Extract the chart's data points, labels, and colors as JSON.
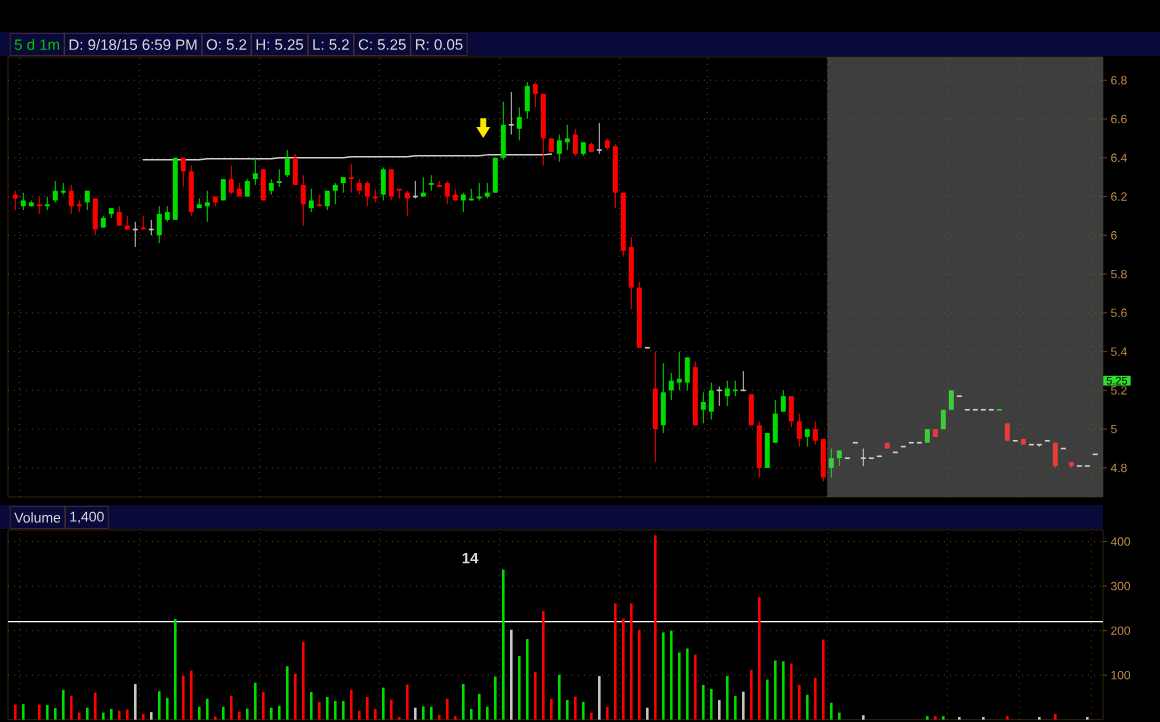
{
  "chart_data": [
    {
      "type": "candlestick",
      "title": "5 d 1m",
      "annotations": [
        "D: 9/18/15 6:59 PM",
        "O: 5.2",
        "H: 5.25",
        "L: 5.2",
        "C: 5.25",
        "R: 0.05",
        {
          "text": "5.25",
          "y": 5.25
        }
      ],
      "categories": [
        null,
        null,
        null,
        null,
        null,
        null,
        null,
        null,
        null,
        null,
        null,
        null,
        null,
        null,
        null,
        null,
        null,
        null,
        null,
        null,
        null,
        null,
        null,
        null,
        null,
        null,
        null,
        null,
        null,
        null,
        null,
        null,
        null,
        null,
        null,
        null,
        null,
        null,
        null,
        null,
        null,
        null,
        null,
        null,
        null,
        null,
        null,
        null,
        null,
        null,
        null,
        null,
        null,
        null,
        null,
        null,
        null,
        null,
        null,
        null,
        null,
        null,
        null,
        null,
        null,
        null,
        null,
        null,
        null,
        null,
        null,
        null,
        null,
        null,
        null,
        null,
        null,
        null,
        null,
        null,
        null,
        null,
        null,
        null,
        null,
        null,
        null,
        null,
        null,
        null,
        null,
        null,
        null,
        null,
        null,
        null,
        null,
        null,
        null,
        null,
        null,
        null,
        null,
        null,
        null,
        null,
        null,
        null,
        null,
        null,
        null,
        null,
        null,
        null,
        null,
        null,
        null,
        null,
        null,
        null,
        null,
        null,
        null,
        null,
        null,
        null,
        null,
        null,
        null,
        null,
        null,
        null,
        null,
        null,
        null,
        null
      ],
      "ohlc": [
        [
          6.21,
          6.23,
          6.13,
          6.19
        ],
        [
          6.15,
          6.22,
          6.13,
          6.18
        ],
        [
          6.15,
          6.18,
          6.15,
          6.17
        ],
        [
          6.16,
          6.2,
          6.11,
          6.15
        ],
        [
          6.15,
          6.2,
          6.13,
          6.16
        ],
        [
          6.18,
          6.28,
          6.17,
          6.23
        ],
        [
          6.22,
          6.27,
          6.21,
          6.23
        ],
        [
          6.23,
          6.26,
          6.11,
          6.15
        ],
        [
          6.16,
          6.18,
          6.12,
          6.15
        ],
        [
          6.17,
          6.23,
          6.13,
          6.23
        ],
        [
          6.19,
          6.19,
          6.0,
          6.03
        ],
        [
          6.04,
          6.1,
          6.04,
          6.09
        ],
        [
          6.11,
          6.14,
          6.09,
          6.14
        ],
        [
          6.12,
          6.15,
          6.05,
          6.05
        ],
        [
          6.05,
          6.1,
          6.03,
          6.03
        ],
        [
          6.03,
          6.07,
          5.94,
          6.03
        ],
        [
          6.04,
          6.1,
          6.03,
          6.03
        ],
        [
          6.03,
          6.08,
          6.0,
          6.03
        ],
        [
          6.0,
          6.15,
          5.96,
          6.11
        ],
        [
          6.08,
          6.15,
          6.07,
          6.12
        ],
        [
          6.08,
          6.4,
          6.08,
          6.4
        ],
        [
          6.4,
          6.4,
          6.25,
          6.33
        ],
        [
          6.33,
          6.36,
          6.1,
          6.12
        ],
        [
          6.14,
          6.19,
          6.14,
          6.16
        ],
        [
          6.15,
          6.23,
          6.07,
          6.17
        ],
        [
          6.2,
          6.2,
          6.15,
          6.17
        ],
        [
          6.18,
          6.29,
          6.18,
          6.29
        ],
        [
          6.29,
          6.36,
          6.21,
          6.22
        ],
        [
          6.24,
          6.27,
          6.2,
          6.2
        ],
        [
          6.2,
          6.29,
          6.2,
          6.28
        ],
        [
          6.29,
          6.4,
          6.26,
          6.32
        ],
        [
          6.34,
          6.34,
          6.18,
          6.18
        ],
        [
          6.23,
          6.29,
          6.21,
          6.27
        ],
        [
          6.27,
          6.34,
          6.25,
          6.28
        ],
        [
          6.31,
          6.44,
          6.3,
          6.4
        ],
        [
          6.4,
          6.42,
          6.26,
          6.26
        ],
        [
          6.26,
          6.31,
          6.05,
          6.16
        ],
        [
          6.14,
          6.24,
          6.12,
          6.18
        ],
        [
          6.16,
          6.21,
          6.15,
          6.15
        ],
        [
          6.15,
          6.23,
          6.13,
          6.23
        ],
        [
          6.23,
          6.27,
          6.16,
          6.26
        ],
        [
          6.27,
          6.3,
          6.22,
          6.3
        ],
        [
          6.3,
          6.37,
          6.22,
          6.29
        ],
        [
          6.27,
          6.29,
          6.21,
          6.23
        ],
        [
          6.27,
          6.28,
          6.15,
          6.2
        ],
        [
          6.2,
          6.24,
          6.17,
          6.19
        ],
        [
          6.21,
          6.35,
          6.18,
          6.34
        ],
        [
          6.34,
          6.34,
          6.18,
          6.2
        ],
        [
          6.24,
          6.24,
          6.19,
          6.23
        ],
        [
          6.22,
          6.23,
          6.1,
          6.19
        ],
        [
          6.2,
          6.28,
          6.19,
          6.2
        ],
        [
          6.2,
          6.3,
          6.2,
          6.22
        ],
        [
          6.26,
          6.31,
          6.23,
          6.27
        ],
        [
          6.26,
          6.28,
          6.25,
          6.25
        ],
        [
          6.27,
          6.28,
          6.16,
          6.2
        ],
        [
          6.21,
          6.24,
          6.18,
          6.18
        ],
        [
          6.18,
          6.22,
          6.12,
          6.21
        ],
        [
          6.18,
          6.24,
          6.18,
          6.19
        ],
        [
          6.19,
          6.27,
          6.18,
          6.2
        ],
        [
          6.2,
          6.27,
          6.19,
          6.22
        ],
        [
          6.22,
          6.4,
          6.22,
          6.4
        ],
        [
          6.4,
          6.69,
          6.39,
          6.57
        ],
        [
          6.57,
          6.74,
          6.52,
          6.57
        ],
        [
          6.55,
          6.66,
          6.49,
          6.61
        ],
        [
          6.64,
          6.79,
          6.6,
          6.77
        ],
        [
          6.78,
          6.79,
          6.66,
          6.73
        ],
        [
          6.73,
          6.73,
          6.36,
          6.5
        ],
        [
          6.5,
          6.5,
          6.43,
          6.43
        ],
        [
          6.42,
          6.52,
          6.38,
          6.49
        ],
        [
          6.48,
          6.57,
          6.44,
          6.5
        ],
        [
          6.52,
          6.55,
          6.41,
          6.42
        ],
        [
          6.42,
          6.48,
          6.41,
          6.48
        ],
        [
          6.47,
          6.48,
          6.43,
          6.43
        ],
        [
          6.44,
          6.58,
          6.42,
          6.44
        ],
        [
          6.49,
          6.5,
          6.44,
          6.45
        ],
        [
          6.46,
          6.47,
          6.14,
          6.22
        ],
        [
          6.22,
          6.22,
          5.89,
          5.92
        ],
        [
          5.94,
          5.99,
          5.62,
          5.73
        ],
        [
          5.73,
          5.76,
          5.42,
          5.42
        ],
        [
          5.42,
          5.42,
          5.42,
          5.42
        ],
        [
          5.21,
          5.4,
          4.83,
          5.0
        ],
        [
          5.02,
          5.34,
          4.98,
          5.19
        ],
        [
          5.2,
          5.29,
          5.15,
          5.25
        ],
        [
          5.24,
          5.4,
          5.2,
          5.26
        ],
        [
          5.24,
          5.37,
          5.2,
          5.37
        ],
        [
          5.32,
          5.35,
          5.02,
          5.02
        ],
        [
          5.1,
          5.19,
          5.03,
          5.14
        ],
        [
          5.09,
          5.24,
          5.05,
          5.2
        ],
        [
          5.2,
          5.22,
          5.12,
          5.2
        ],
        [
          5.17,
          5.25,
          5.12,
          5.21
        ],
        [
          5.2,
          5.25,
          5.17,
          5.2
        ],
        [
          5.2,
          5.3,
          5.2,
          5.2
        ],
        [
          5.18,
          5.18,
          5.02,
          5.02
        ],
        [
          5.02,
          5.04,
          4.75,
          4.8
        ],
        [
          4.8,
          4.98,
          4.8,
          4.98
        ],
        [
          4.93,
          5.15,
          4.93,
          5.08
        ],
        [
          5.09,
          5.2,
          5.09,
          5.17
        ],
        [
          5.17,
          5.17,
          5.01,
          5.04
        ],
        [
          5.04,
          5.08,
          4.91,
          4.95
        ],
        [
          4.96,
          5.0,
          4.91,
          5.0
        ],
        [
          5.0,
          5.04,
          4.92,
          4.94
        ],
        [
          4.95,
          4.95,
          4.73,
          4.75
        ],
        [
          4.8,
          4.9,
          4.75,
          4.85
        ],
        [
          4.85,
          4.89,
          4.81,
          4.89
        ],
        [
          4.85,
          4.85,
          4.85,
          4.85
        ],
        [
          4.93,
          4.93,
          4.93,
          4.93
        ],
        [
          4.85,
          4.9,
          4.81,
          4.85
        ],
        [
          4.85,
          4.85,
          4.85,
          4.85
        ],
        [
          4.86,
          4.86,
          4.86,
          4.86
        ],
        [
          4.93,
          4.93,
          4.9,
          4.9
        ],
        [
          4.88,
          4.88,
          4.88,
          4.88
        ],
        [
          4.91,
          4.91,
          4.91,
          4.91
        ],
        [
          4.93,
          4.93,
          4.93,
          4.93
        ],
        [
          4.93,
          4.93,
          4.93,
          4.93
        ],
        [
          4.93,
          5.0,
          4.93,
          5.0
        ],
        [
          5.0,
          5.0,
          4.96,
          4.96
        ],
        [
          5.0,
          5.1,
          5.0,
          5.1
        ],
        [
          5.1,
          5.2,
          5.1,
          5.2
        ],
        [
          5.17,
          5.17,
          5.17,
          5.17
        ],
        [
          5.1,
          5.1,
          5.1,
          5.1
        ],
        [
          5.1,
          5.1,
          5.1,
          5.1
        ],
        [
          5.1,
          5.1,
          5.1,
          5.1
        ],
        [
          5.1,
          5.1,
          5.1,
          5.1
        ],
        [
          5.1,
          5.1,
          5.1,
          5.1
        ],
        [
          5.03,
          5.03,
          4.94,
          4.94
        ],
        [
          4.94,
          4.94,
          4.94,
          4.94
        ],
        [
          4.95,
          4.95,
          4.92,
          4.92
        ],
        [
          4.92,
          4.92,
          4.92,
          4.92
        ],
        [
          4.92,
          4.92,
          4.91,
          4.92
        ],
        [
          4.94,
          4.94,
          4.94,
          4.94
        ],
        [
          4.93,
          4.93,
          4.8,
          4.81
        ],
        [
          4.9,
          4.9,
          4.9,
          4.9
        ],
        [
          4.83,
          4.83,
          4.8,
          4.81
        ],
        [
          4.81,
          4.81,
          4.81,
          4.81
        ],
        [
          4.81,
          4.81,
          4.81,
          4.81
        ],
        [
          4.87,
          4.87,
          4.87,
          4.87
        ]
      ],
      "colors": [
        "#ff0000",
        "#00dd00",
        "#00dd00",
        "#ff0000",
        "#00dd00",
        "#00dd00",
        "#00dd00",
        "#ff0000",
        "#ff0000",
        "#00dd00",
        "#ff0000",
        "#00dd00",
        "#00dd00",
        "#ff0000",
        "#ff0000",
        "#c8c8c8",
        "#ff0000",
        "#c8c8c8",
        "#00dd00",
        "#00dd00",
        "#00dd00",
        "#ff0000",
        "#ff0000",
        "#00dd00",
        "#00dd00",
        "#ff0000",
        "#00dd00",
        "#ff0000",
        "#ff0000",
        "#00dd00",
        "#00dd00",
        "#ff0000",
        "#00dd00",
        "#00dd00",
        "#00dd00",
        "#ff0000",
        "#ff0000",
        "#00dd00",
        "#ff0000",
        "#00dd00",
        "#00dd00",
        "#00dd00",
        "#ff0000",
        "#ff0000",
        "#ff0000",
        "#ff0000",
        "#00dd00",
        "#ff0000",
        "#ff0000",
        "#ff0000",
        "#c8c8c8",
        "#00dd00",
        "#00dd00",
        "#ff0000",
        "#ff0000",
        "#ff0000",
        "#00dd00",
        "#00dd00",
        "#00dd00",
        "#00dd00",
        "#00dd00",
        "#00dd00",
        "#c8c8c8",
        "#00dd00",
        "#00dd00",
        "#ff0000",
        "#ff0000",
        "#ff0000",
        "#00dd00",
        "#00dd00",
        "#ff0000",
        "#00dd00",
        "#ff0000",
        "#c8c8c8",
        "#ff0000",
        "#ff0000",
        "#ff0000",
        "#ff0000",
        "#ff0000",
        "#c8c8c8",
        "#ff0000",
        "#00dd00",
        "#00dd00",
        "#00dd00",
        "#00dd00",
        "#ff0000",
        "#00dd00",
        "#00dd00",
        "#c8c8c8",
        "#00dd00",
        "#00dd00",
        "#c8c8c8",
        "#ff0000",
        "#ff0000",
        "#00dd00",
        "#00dd00",
        "#00dd00",
        "#ff0000",
        "#ff0000",
        "#00dd00",
        "#ff0000",
        "#ff0000",
        "#3ccc3c",
        "#3ccc3c",
        "#d2d2d2",
        "#d2d2d2",
        "#d2d2d2",
        "#d2d2d2",
        "#d2d2d2",
        "#e63c3c",
        "#d2d2d2",
        "#d2d2d2",
        "#d2d2d2",
        "#d2d2d2",
        "#3ccc3c",
        "#e63c3c",
        "#3ccc3c",
        "#3ccc3c",
        "#d2d2d2",
        "#d2d2d2",
        "#d2d2d2",
        "#d2d2d2",
        "#d2d2d2",
        "#3ccc3c",
        "#e63c3c",
        "#d2d2d2",
        "#e63c3c",
        "#d2d2d2",
        "#d2d2d2",
        "#d2d2d2",
        "#e63c3c",
        "#d2d2d2",
        "#e63c3c",
        "#d2d2d2",
        "#d2d2d2",
        "#d2d2d2"
      ],
      "series": [
        {
          "type": "line",
          "color": "#cfcfcf",
          "values": [
            null,
            null,
            null,
            null,
            null,
            null,
            null,
            null,
            null,
            null,
            null,
            null,
            null,
            null,
            null,
            null,
            6.39,
            6.39,
            6.39,
            6.39,
            6.39,
            6.39,
            6.39,
            6.39,
            6.395,
            6.395,
            6.395,
            6.395,
            6.395,
            6.395,
            6.395,
            6.395,
            6.395,
            6.4,
            6.4,
            6.4,
            6.4,
            6.4,
            6.4,
            6.4,
            6.4,
            6.4,
            6.405,
            6.405,
            6.405,
            6.405,
            6.405,
            6.405,
            6.405,
            6.405,
            6.41,
            6.41,
            6.41,
            6.41,
            6.41,
            6.41,
            6.41,
            6.41,
            6.41,
            6.415,
            6.415,
            6.415,
            6.415,
            6.415,
            6.415,
            6.415,
            6.415,
            6.42,
            null,
            null,
            null,
            null,
            null,
            null,
            null,
            null,
            null,
            null,
            null,
            null,
            null,
            null,
            null,
            null,
            null,
            null,
            null,
            null,
            null,
            null,
            null,
            null,
            null,
            null,
            null,
            null,
            null,
            null,
            null,
            null,
            null,
            null,
            null,
            null,
            null,
            null,
            null,
            null,
            null,
            null,
            null,
            null,
            null,
            null,
            null,
            null,
            null,
            null,
            null,
            null,
            null,
            null,
            null,
            null,
            null,
            null,
            null,
            null,
            null,
            null,
            null,
            null,
            null,
            null,
            null,
            null
          ]
        }
      ],
      "ylim": [
        4.65,
        6.92
      ],
      "yticks": [
        4.8,
        5,
        5.2,
        5.4,
        5.6,
        5.8,
        6,
        6.2,
        6.4,
        6.6,
        6.8
      ],
      "grid": true,
      "tick_labels": "y"
    },
    {
      "type": "bar",
      "title": "Volume",
      "annotations": [
        "1,400",
        "14"
      ],
      "categories": [
        null,
        null,
        null,
        null,
        null,
        null,
        null,
        null,
        null,
        null,
        null,
        null,
        null,
        null,
        null,
        null,
        null,
        null,
        null,
        null,
        null,
        null,
        null,
        null,
        null,
        null,
        null,
        null,
        null,
        null,
        null,
        null,
        null,
        null,
        null,
        null,
        null,
        null,
        null,
        null,
        null,
        null,
        null,
        null,
        null,
        null,
        null,
        null,
        null,
        null,
        null,
        null,
        null,
        null,
        null,
        null,
        null,
        null,
        null,
        null,
        null,
        null,
        null,
        null,
        null,
        null,
        null,
        null,
        null,
        null,
        null,
        null,
        null,
        null,
        null,
        null,
        null,
        null,
        null,
        null,
        null,
        null,
        null,
        null,
        null,
        null,
        null,
        null,
        null,
        null,
        null,
        null,
        null,
        null,
        null,
        null,
        null,
        null,
        null,
        null,
        null,
        null,
        null,
        null,
        null,
        null,
        null,
        null,
        null,
        null,
        null,
        null,
        null,
        null,
        null,
        null,
        null,
        null,
        null,
        null,
        null,
        null,
        null,
        null,
        null,
        null,
        null,
        null,
        null,
        null,
        null,
        null,
        null,
        null,
        null,
        null
      ],
      "values": [
        34,
        35,
        null,
        34,
        33,
        26,
        67,
        53,
        16,
        27,
        61,
        16,
        24,
        20,
        23,
        80,
        13,
        17,
        64,
        49,
        226,
        99,
        110,
        29,
        47,
        7,
        29,
        53,
        18,
        25,
        83,
        62,
        27,
        31,
        120,
        103,
        175,
        62,
        40,
        51,
        42,
        42,
        67,
        20,
        51,
        24,
        72,
        45,
        6,
        79,
        27,
        30,
        29,
        11,
        47,
        8,
        80,
        24,
        58,
        29,
        97,
        337,
        202,
        143,
        181,
        107,
        244,
        47,
        101,
        44,
        52,
        40,
        16,
        98,
        29,
        261,
        227,
        261,
        202,
        27,
        414,
        196,
        200,
        151,
        160,
        146,
        78,
        69,
        44,
        98,
        53,
        63,
        112,
        275,
        90,
        133,
        131,
        126,
        78,
        56,
        94,
        180,
        38,
        16,
        null,
        null,
        10,
        null,
        null,
        null,
        null,
        null,
        null,
        null,
        8,
        8,
        8,
        null,
        6,
        null,
        null,
        6,
        null,
        null,
        8,
        null,
        null,
        null,
        6,
        null,
        13,
        null,
        null,
        null,
        6,
        null
      ],
      "colors": [
        "#ff0000",
        "#00dd00",
        "#00dd00",
        "#ff0000",
        "#00dd00",
        "#00dd00",
        "#00dd00",
        "#ff0000",
        "#ff0000",
        "#00dd00",
        "#ff0000",
        "#00dd00",
        "#00dd00",
        "#ff0000",
        "#ff0000",
        "#c8c8c8",
        "#ff0000",
        "#c8c8c8",
        "#00dd00",
        "#00dd00",
        "#00dd00",
        "#ff0000",
        "#ff0000",
        "#00dd00",
        "#00dd00",
        "#ff0000",
        "#00dd00",
        "#ff0000",
        "#ff0000",
        "#00dd00",
        "#00dd00",
        "#ff0000",
        "#00dd00",
        "#00dd00",
        "#00dd00",
        "#ff0000",
        "#ff0000",
        "#00dd00",
        "#ff0000",
        "#00dd00",
        "#00dd00",
        "#00dd00",
        "#ff0000",
        "#ff0000",
        "#ff0000",
        "#ff0000",
        "#00dd00",
        "#ff0000",
        "#ff0000",
        "#ff0000",
        "#c8c8c8",
        "#00dd00",
        "#00dd00",
        "#ff0000",
        "#ff0000",
        "#ff0000",
        "#00dd00",
        "#00dd00",
        "#00dd00",
        "#00dd00",
        "#00dd00",
        "#00dd00",
        "#c8c8c8",
        "#00dd00",
        "#00dd00",
        "#ff0000",
        "#ff0000",
        "#ff0000",
        "#00dd00",
        "#00dd00",
        "#ff0000",
        "#00dd00",
        "#ff0000",
        "#c8c8c8",
        "#ff0000",
        "#ff0000",
        "#ff0000",
        "#ff0000",
        "#ff0000",
        "#c8c8c8",
        "#ff0000",
        "#00dd00",
        "#00dd00",
        "#00dd00",
        "#00dd00",
        "#ff0000",
        "#00dd00",
        "#00dd00",
        "#c8c8c8",
        "#00dd00",
        "#00dd00",
        "#c8c8c8",
        "#ff0000",
        "#ff0000",
        "#00dd00",
        "#00dd00",
        "#00dd00",
        "#ff0000",
        "#ff0000",
        "#00dd00",
        "#ff0000",
        "#ff0000",
        "#00dd00",
        "#00dd00",
        "#c8c8c8",
        "#c8c8c8",
        "#c8c8c8",
        "#c8c8c8",
        "#c8c8c8",
        "#ff0000",
        "#c8c8c8",
        "#c8c8c8",
        "#c8c8c8",
        "#c8c8c8",
        "#00dd00",
        "#ff0000",
        "#00dd00",
        "#00dd00",
        "#c8c8c8",
        "#c8c8c8",
        "#c8c8c8",
        "#c8c8c8",
        "#c8c8c8",
        "#00dd00",
        "#ff0000",
        "#c8c8c8",
        "#ff0000",
        "#c8c8c8",
        "#c8c8c8",
        "#c8c8c8",
        "#ff0000",
        "#c8c8c8",
        "#ff0000",
        "#c8c8c8",
        "#c8c8c8",
        "#c8c8c8"
      ],
      "ylim": [
        0,
        426
      ],
      "yticks": [
        100,
        200,
        300,
        400
      ],
      "ref_lines": [
        {
          "axis": "y",
          "value": 220,
          "color": "#ffffff"
        }
      ],
      "grid": true,
      "tick_labels": "y"
    }
  ]
}
